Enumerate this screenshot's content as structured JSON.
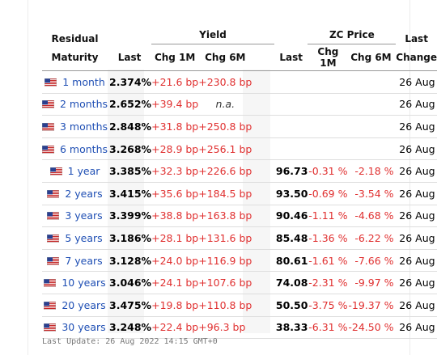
{
  "header": {
    "residual_line1": "Residual",
    "residual_line2": "Maturity",
    "yield_group": "Yield",
    "zc_group": "ZC Price",
    "last_change_line1": "Last",
    "last_change_line2": "Change",
    "yield_cols": [
      "Last",
      "Chg 1M",
      "Chg 6M"
    ],
    "zc_cols": [
      "Last",
      "Chg 1M",
      "Chg 6M"
    ]
  },
  "rows": [
    {
      "maturity": "1 month",
      "y_last": "2.374%",
      "y_chg1m": "+21.6 bp",
      "y_chg6m": "+230.8 bp",
      "zc_last": "",
      "zc_chg1m": "",
      "zc_chg6m": "",
      "date": "26 Aug"
    },
    {
      "maturity": "2 months",
      "y_last": "2.652%",
      "y_chg1m": "+39.4 bp",
      "y_chg6m": "n.a.",
      "zc_last": "",
      "zc_chg1m": "",
      "zc_chg6m": "",
      "date": "26 Aug"
    },
    {
      "maturity": "3 months",
      "y_last": "2.848%",
      "y_chg1m": "+31.8 bp",
      "y_chg6m": "+250.8 bp",
      "zc_last": "",
      "zc_chg1m": "",
      "zc_chg6m": "",
      "date": "26 Aug"
    },
    {
      "maturity": "6 months",
      "y_last": "3.268%",
      "y_chg1m": "+28.9 bp",
      "y_chg6m": "+256.1 bp",
      "zc_last": "",
      "zc_chg1m": "",
      "zc_chg6m": "",
      "date": "26 Aug"
    },
    {
      "maturity": "1 year",
      "y_last": "3.385%",
      "y_chg1m": "+32.3 bp",
      "y_chg6m": "+226.6 bp",
      "zc_last": "96.73",
      "zc_chg1m": "-0.31 %",
      "zc_chg6m": "-2.18 %",
      "date": "26 Aug"
    },
    {
      "maturity": "2 years",
      "y_last": "3.415%",
      "y_chg1m": "+35.6 bp",
      "y_chg6m": "+184.5 bp",
      "zc_last": "93.50",
      "zc_chg1m": "-0.69 %",
      "zc_chg6m": "-3.54 %",
      "date": "26 Aug"
    },
    {
      "maturity": "3 years",
      "y_last": "3.399%",
      "y_chg1m": "+38.8 bp",
      "y_chg6m": "+163.8 bp",
      "zc_last": "90.46",
      "zc_chg1m": "-1.11 %",
      "zc_chg6m": "-4.68 %",
      "date": "26 Aug"
    },
    {
      "maturity": "5 years",
      "y_last": "3.186%",
      "y_chg1m": "+28.1 bp",
      "y_chg6m": "+131.6 bp",
      "zc_last": "85.48",
      "zc_chg1m": "-1.36 %",
      "zc_chg6m": "-6.22 %",
      "date": "26 Aug"
    },
    {
      "maturity": "7 years",
      "y_last": "3.128%",
      "y_chg1m": "+24.0 bp",
      "y_chg6m": "+116.9 bp",
      "zc_last": "80.61",
      "zc_chg1m": "-1.61 %",
      "zc_chg6m": "-7.66 %",
      "date": "26 Aug"
    },
    {
      "maturity": "10 years",
      "y_last": "3.046%",
      "y_chg1m": "+24.1 bp",
      "y_chg6m": "+107.6 bp",
      "zc_last": "74.08",
      "zc_chg1m": "-2.31 %",
      "zc_chg6m": "-9.97 %",
      "date": "26 Aug"
    },
    {
      "maturity": "20 years",
      "y_last": "3.475%",
      "y_chg1m": "+19.8 bp",
      "y_chg6m": "+110.8 bp",
      "zc_last": "50.50",
      "zc_chg1m": "-3.75 %",
      "zc_chg6m": "-19.37 %",
      "date": "26 Aug"
    },
    {
      "maturity": "30 years",
      "y_last": "3.248%",
      "y_chg1m": "+22.4 bp",
      "y_chg6m": "+96.3 bp",
      "zc_last": "38.33",
      "zc_chg1m": "-6.31 %",
      "zc_chg6m": "-24.50 %",
      "date": "26 Aug"
    }
  ],
  "footer": {
    "last_update": "Last Update: 26 Aug 2022 14:15 GMT+0"
  },
  "icons": {
    "flag": "us-flag-icon"
  },
  "colors": {
    "maturity_link": "#1f4fb4",
    "change_value": "#e03030",
    "column_shade": "#f6f6f6"
  }
}
